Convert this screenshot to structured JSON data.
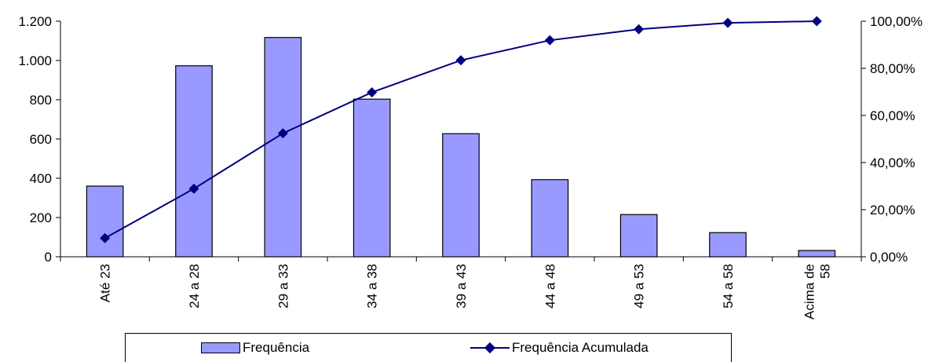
{
  "chart_data": {
    "type": "bar",
    "categories": [
      "Até 23",
      "24 a 28",
      "29 a 33",
      "34 a 38",
      "39 a 43",
      "44 a 48",
      "49 a 53",
      "54 a 58",
      "Acima de 58"
    ],
    "category_lines": [
      [
        "Até 23"
      ],
      [
        "24 a 28"
      ],
      [
        "29 a 33"
      ],
      [
        "34 a 38"
      ],
      [
        "39 a 43"
      ],
      [
        "44 a 48"
      ],
      [
        "49 a 53"
      ],
      [
        "54 a 58"
      ],
      [
        "Acima de",
        "58"
      ]
    ],
    "series": [
      {
        "name": "Frequência",
        "type": "bar",
        "axis": "left",
        "values": [
          360,
          973,
          1117,
          803,
          627,
          393,
          215,
          123,
          32
        ]
      },
      {
        "name": "Frequência Acumulada",
        "type": "line",
        "axis": "right",
        "values": [
          7.9,
          28.9,
          52.4,
          69.8,
          83.4,
          91.9,
          96.6,
          99.3,
          100.0
        ]
      }
    ],
    "y_left": {
      "ylim": [
        0,
        1200
      ],
      "ticks": [
        0,
        200,
        400,
        600,
        800,
        1000,
        1200
      ],
      "tick_labels": [
        "0",
        "200",
        "400",
        "600",
        "800",
        "1.000",
        "1.200"
      ]
    },
    "y_right": {
      "ylim": [
        0,
        100
      ],
      "ticks": [
        0,
        20,
        40,
        60,
        80,
        100
      ],
      "tick_labels": [
        "0,00%",
        "20,00%",
        "40,00%",
        "60,00%",
        "80,00%",
        "100,00%"
      ]
    },
    "title": "",
    "xlabel": "",
    "ylabel": "",
    "grid": false,
    "legend_position": "bottom",
    "colors": {
      "bar_fill": "#9999ff",
      "bar_stroke": "#000000",
      "line": "#000080",
      "axis": "#000000"
    }
  },
  "legend": {
    "bar_label": "Frequência",
    "line_label": "Frequência Acumulada"
  }
}
